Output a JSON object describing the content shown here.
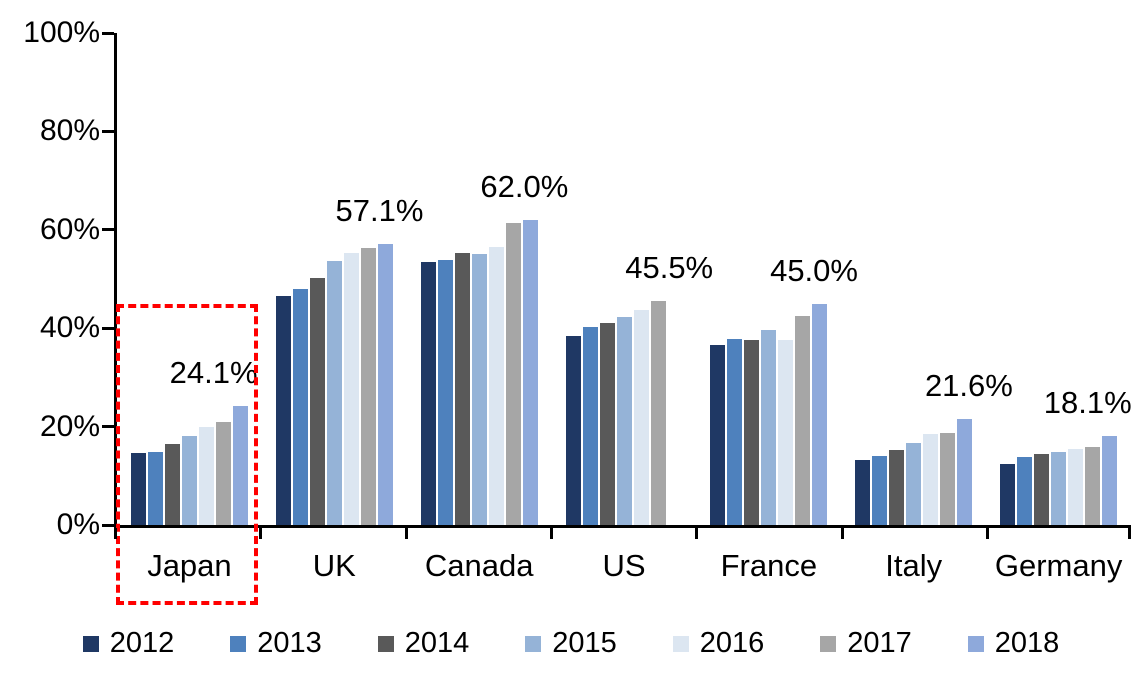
{
  "chart_data": {
    "type": "bar",
    "title": "",
    "xlabel": "",
    "ylabel": "",
    "ylim": [
      0,
      100
    ],
    "grid": false,
    "legend_position": "bottom",
    "y_ticks": [
      "100%",
      "80%",
      "60%",
      "40%",
      "20%",
      "0%"
    ],
    "categories": [
      "Japan",
      "UK",
      "Canada",
      "US",
      "France",
      "Italy",
      "Germany"
    ],
    "series": [
      {
        "name": "2012",
        "color": "#1F3864",
        "values": [
          14.6,
          46.6,
          53.4,
          38.4,
          36.6,
          13.3,
          12.4
        ]
      },
      {
        "name": "2013",
        "color": "#4E81BD",
        "values": [
          14.9,
          48.0,
          53.9,
          40.2,
          37.8,
          14.1,
          13.9
        ]
      },
      {
        "name": "2014",
        "color": "#595959",
        "values": [
          16.5,
          50.3,
          55.2,
          41.0,
          37.7,
          15.3,
          14.4
        ]
      },
      {
        "name": "2015",
        "color": "#95B3D7",
        "values": [
          18.0,
          53.6,
          55.0,
          42.2,
          39.6,
          16.7,
          14.8
        ]
      },
      {
        "name": "2016",
        "color": "#DCE6F1",
        "values": [
          20.0,
          55.2,
          56.6,
          43.7,
          37.6,
          18.5,
          15.4
        ]
      },
      {
        "name": "2017",
        "color": "#A6A6A6",
        "values": [
          21.0,
          56.4,
          61.4,
          45.5,
          42.5,
          18.7,
          15.8
        ]
      },
      {
        "name": "2018",
        "color": "#8EA9DB",
        "values": [
          24.1,
          57.1,
          62.0,
          null,
          45.0,
          21.6,
          18.1
        ]
      }
    ],
    "data_labels": [
      "24.1%",
      "57.1%",
      "62.0%",
      "45.5%",
      "45.0%",
      "21.6%",
      "18.1%"
    ],
    "annotations": [
      {
        "type": "dashed-rectangle",
        "target": "Japan",
        "color": "#FF0000"
      }
    ]
  }
}
